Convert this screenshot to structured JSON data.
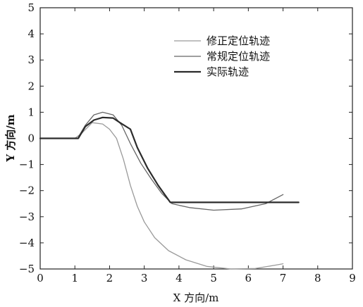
{
  "chart_data": {
    "type": "line",
    "xlabel": "X 方向/m",
    "ylabel": "Y 方向/m",
    "xlim": [
      0,
      9
    ],
    "ylim": [
      -5,
      5
    ],
    "x_ticks": [
      0,
      1,
      2,
      3,
      4,
      5,
      6,
      7,
      8,
      9
    ],
    "y_ticks": [
      5,
      4,
      3,
      2,
      1,
      0,
      -1,
      -2,
      -3,
      -4,
      -5
    ],
    "y_tick_labels": [
      "5",
      "4",
      "3",
      "2",
      "1",
      "0",
      "−1",
      "−2",
      "−3",
      "−4",
      "−5"
    ],
    "grid": false,
    "legend_position": "top-right",
    "series": [
      {
        "name": "修正定位轨迹",
        "color": "#9a9a9a",
        "stroke_width": 1.3,
        "points": [
          [
            0,
            0
          ],
          [
            1,
            0
          ],
          [
            1.2,
            0.2
          ],
          [
            1.5,
            0.6
          ],
          [
            1.8,
            0.55
          ],
          [
            2.0,
            0.35
          ],
          [
            2.2,
            0
          ],
          [
            2.4,
            -0.8
          ],
          [
            2.6,
            -1.8
          ],
          [
            2.8,
            -2.6
          ],
          [
            3.0,
            -3.2
          ],
          [
            3.3,
            -3.8
          ],
          [
            3.7,
            -4.3
          ],
          [
            4.2,
            -4.65
          ],
          [
            4.8,
            -4.9
          ],
          [
            5.5,
            -5.0
          ],
          [
            6.2,
            -4.98
          ],
          [
            6.8,
            -4.85
          ],
          [
            7.0,
            -4.8
          ]
        ]
      },
      {
        "name": "常规定位轨迹",
        "color": "#666666",
        "stroke_width": 1.3,
        "points": [
          [
            1.1,
            0.05
          ],
          [
            1.3,
            0.5
          ],
          [
            1.55,
            0.9
          ],
          [
            1.8,
            1.0
          ],
          [
            2.1,
            0.9
          ],
          [
            2.35,
            0.5
          ],
          [
            2.6,
            -0.2
          ],
          [
            2.9,
            -0.95
          ],
          [
            3.2,
            -1.55
          ],
          [
            3.5,
            -2.1
          ],
          [
            3.8,
            -2.5
          ],
          [
            4.3,
            -2.65
          ],
          [
            5.0,
            -2.75
          ],
          [
            5.8,
            -2.7
          ],
          [
            6.5,
            -2.5
          ],
          [
            7.0,
            -2.15
          ]
        ]
      },
      {
        "name": "实际轨迹",
        "color": "#2b2b2b",
        "stroke_width": 2.2,
        "points": [
          [
            0,
            0
          ],
          [
            1.1,
            0
          ],
          [
            1.3,
            0.45
          ],
          [
            1.55,
            0.7
          ],
          [
            1.8,
            0.8
          ],
          [
            2.1,
            0.78
          ],
          [
            2.3,
            0.6
          ],
          [
            2.6,
            0.35
          ],
          [
            2.8,
            -0.35
          ],
          [
            3.1,
            -1.15
          ],
          [
            3.4,
            -1.8
          ],
          [
            3.75,
            -2.45
          ],
          [
            7.45,
            -2.45
          ]
        ]
      }
    ]
  }
}
